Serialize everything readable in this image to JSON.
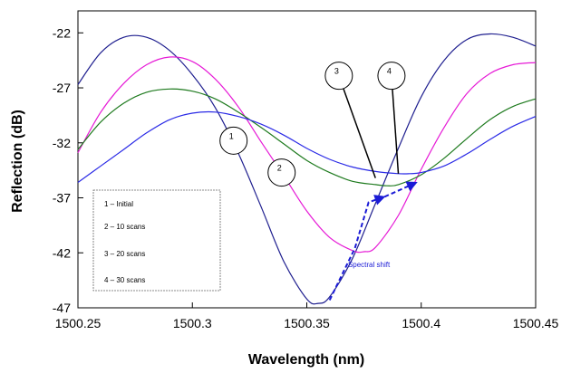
{
  "chart_data": {
    "type": "line",
    "xlabel": "Wavelength (nm)",
    "ylabel": "Reflection (dB)",
    "xlim": [
      1500.25,
      1500.45
    ],
    "ylim": [
      -47,
      -20
    ],
    "x_ticks": [
      "1500.25",
      "1500.3",
      "1500.35",
      "1500.4",
      "1500.45"
    ],
    "y_ticks": [
      "-22",
      "-27",
      "-32",
      "-37",
      "-42",
      "-47"
    ],
    "x_tick_values": [
      1500.25,
      1500.3,
      1500.35,
      1500.4,
      1500.45
    ],
    "y_tick_values": [
      -22,
      -27,
      -32,
      -37,
      -42,
      -47
    ],
    "grid": false,
    "legend_position": "bottom-left",
    "legend": [
      "1 – Initial",
      "2 – 10 scans",
      "3 – 20 scans",
      "4 – 30 scans"
    ],
    "series": [
      {
        "name": "1",
        "color": "#1f1f8f",
        "x": [
          1500.25,
          1500.26,
          1500.27,
          1500.28,
          1500.29,
          1500.3,
          1500.31,
          1500.32,
          1500.33,
          1500.34,
          1500.35,
          1500.355,
          1500.36,
          1500.37,
          1500.38,
          1500.39,
          1500.4,
          1500.41,
          1500.42,
          1500.43,
          1500.44,
          1500.45
        ],
        "y": [
          -26.7,
          -23.8,
          -22.4,
          -22.4,
          -23.6,
          -25.8,
          -28.8,
          -32.9,
          -37.8,
          -42.8,
          -46.2,
          -46.6,
          -46.0,
          -42.5,
          -37.5,
          -32.5,
          -27.8,
          -24.5,
          -22.6,
          -22.1,
          -22.4,
          -23.2
        ]
      },
      {
        "name": "2",
        "color": "#e61ad6",
        "x": [
          1500.25,
          1500.26,
          1500.27,
          1500.28,
          1500.29,
          1500.3,
          1500.31,
          1500.32,
          1500.33,
          1500.34,
          1500.35,
          1500.36,
          1500.37,
          1500.375,
          1500.38,
          1500.39,
          1500.4,
          1500.41,
          1500.42,
          1500.43,
          1500.44,
          1500.45
        ],
        "y": [
          -32.9,
          -29.2,
          -26.6,
          -24.9,
          -24.2,
          -24.6,
          -26.2,
          -28.7,
          -31.9,
          -35.0,
          -38.2,
          -40.6,
          -41.8,
          -41.9,
          -41.5,
          -38.6,
          -34.4,
          -30.6,
          -27.5,
          -25.7,
          -24.9,
          -24.7
        ]
      },
      {
        "name": "3",
        "color": "#1e7a1e",
        "x": [
          1500.25,
          1500.26,
          1500.27,
          1500.28,
          1500.29,
          1500.3,
          1500.31,
          1500.32,
          1500.33,
          1500.34,
          1500.35,
          1500.36,
          1500.37,
          1500.38,
          1500.385,
          1500.39,
          1500.4,
          1500.41,
          1500.42,
          1500.43,
          1500.44,
          1500.45
        ],
        "y": [
          -32.6,
          -30.1,
          -28.4,
          -27.4,
          -27.1,
          -27.3,
          -28.0,
          -29.2,
          -30.6,
          -32.1,
          -33.6,
          -34.7,
          -35.5,
          -35.8,
          -35.9,
          -35.8,
          -34.9,
          -33.4,
          -31.6,
          -29.9,
          -28.7,
          -28.0
        ]
      },
      {
        "name": "4",
        "color": "#2a2ae6",
        "x": [
          1500.25,
          1500.26,
          1500.27,
          1500.28,
          1500.29,
          1500.3,
          1500.31,
          1500.32,
          1500.33,
          1500.34,
          1500.35,
          1500.36,
          1500.37,
          1500.38,
          1500.39,
          1500.395,
          1500.4,
          1500.41,
          1500.42,
          1500.43,
          1500.44,
          1500.45
        ],
        "y": [
          -35.6,
          -34.1,
          -32.6,
          -31.1,
          -29.9,
          -29.3,
          -29.2,
          -29.6,
          -30.3,
          -31.3,
          -32.5,
          -33.5,
          -34.2,
          -34.6,
          -34.8,
          -34.8,
          -34.7,
          -34.1,
          -33.0,
          -31.7,
          -30.5,
          -29.6
        ]
      }
    ],
    "callouts": [
      {
        "label": "1",
        "x": 1500.318,
        "y": -31.8
      },
      {
        "label": "2",
        "x": 1500.339,
        "y": -34.7
      },
      {
        "label": "3",
        "x": 1500.364,
        "y": -25.9,
        "arrow_to": [
          1500.38,
          -35.2
        ]
      },
      {
        "label": "4",
        "x": 1500.387,
        "y": -25.9,
        "arrow_to": [
          1500.39,
          -34.8
        ]
      }
    ],
    "annotation": {
      "text": "Spectral shift",
      "color": "#1a1ad6",
      "anchor": [
        1500.368,
        -43.3
      ],
      "path": [
        [
          1500.36,
          -46.3
        ],
        [
          1500.371,
          -41.6
        ],
        [
          1500.377,
          -37.4
        ],
        [
          1500.384,
          -36.9
        ]
      ],
      "arrow_end": [
        1500.398,
        -35.6
      ]
    }
  }
}
